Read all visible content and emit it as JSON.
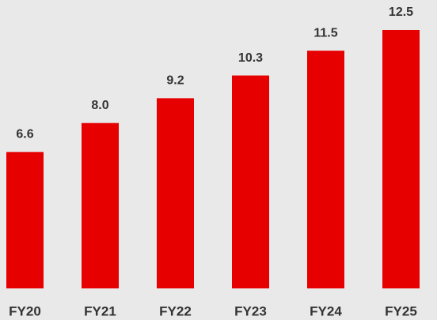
{
  "chart_data": {
    "type": "bar",
    "categories": [
      "FY20",
      "FY21",
      "FY22",
      "FY23",
      "FY24",
      "FY25"
    ],
    "values": [
      6.6,
      8.0,
      9.2,
      10.3,
      11.5,
      12.5
    ],
    "value_labels": [
      "6.6",
      "8.0",
      "9.2",
      "10.3",
      "11.5",
      "12.5"
    ],
    "color": "#e60000"
  }
}
